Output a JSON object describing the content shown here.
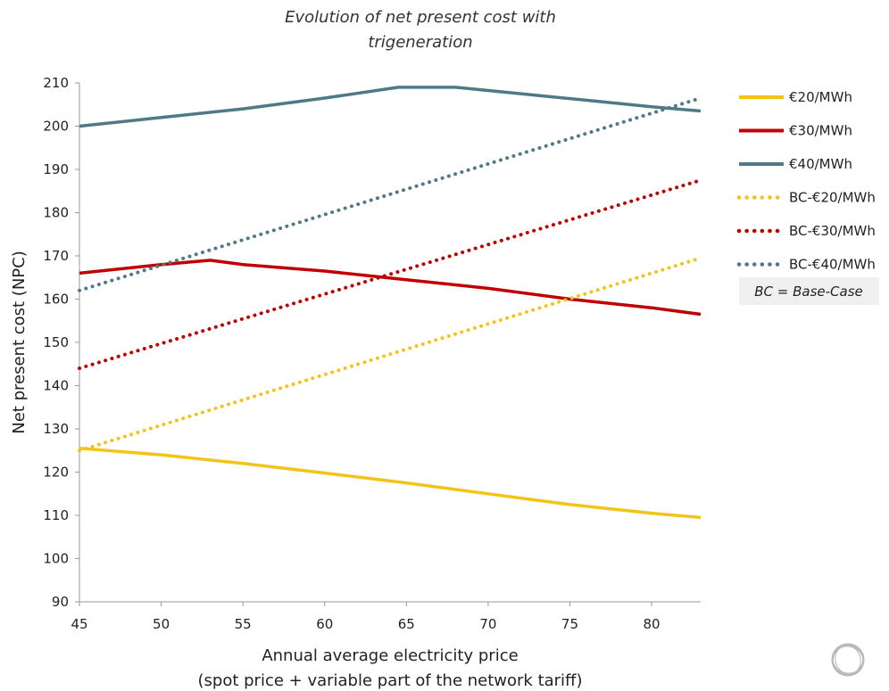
{
  "chart_data": {
    "type": "line",
    "title": [
      "Evolution of net present cost with",
      "trigeneration"
    ],
    "xlabel": [
      "Annual average electricity price",
      "(spot price + variable part of the network tariff)"
    ],
    "ylabel": "Net present cost (NPC)",
    "xlim": [
      45,
      83
    ],
    "ylim": [
      90,
      210
    ],
    "xticks": [
      45,
      50,
      55,
      60,
      65,
      70,
      75,
      80
    ],
    "yticks": [
      90,
      100,
      110,
      120,
      130,
      140,
      150,
      160,
      170,
      180,
      190,
      200,
      210
    ],
    "grid": false,
    "legend_position": "right",
    "series": [
      {
        "name": "€20/MWh",
        "color": "#F2C418",
        "style": "solid",
        "x": [
          45,
          50,
          55,
          60,
          65,
          70,
          75,
          80,
          83
        ],
        "y": [
          125.5,
          124,
          122,
          119.8,
          117.5,
          115,
          112.5,
          110.5,
          109.5
        ]
      },
      {
        "name": "€30/MWh",
        "color": "#C00000",
        "style": "solid",
        "x": [
          45,
          50,
          53,
          55,
          60,
          65,
          70,
          75,
          80,
          83
        ],
        "y": [
          166,
          168,
          169,
          168,
          166.5,
          164.5,
          162.5,
          160,
          158,
          156.5
        ]
      },
      {
        "name": "€40/MWh",
        "color": "#4E7A86",
        "style": "solid",
        "x": [
          45,
          50,
          55,
          60,
          64.5,
          68,
          72,
          76,
          80,
          83
        ],
        "y": [
          200,
          202,
          204,
          206.5,
          209,
          209,
          207.5,
          206,
          204.5,
          203.5
        ]
      },
      {
        "name": "BC-€20/MWh",
        "color": "#F2C418",
        "style": "dotted",
        "x": [
          45,
          83
        ],
        "y": [
          125,
          169.5
        ]
      },
      {
        "name": "BC-€30/MWh",
        "color": "#C00000",
        "style": "dotted",
        "x": [
          45,
          83
        ],
        "y": [
          144,
          187.5
        ]
      },
      {
        "name": "BC-€40/MWh",
        "color": "#4E7A86",
        "style": "dotted",
        "x": [
          45,
          83
        ],
        "y": [
          162,
          206.5
        ]
      }
    ],
    "annotation": "BC = Base-Case"
  },
  "colors": {
    "axis": "#9a9a9a",
    "note_box": "#f0f0f0"
  },
  "icons": {
    "corner_logo": "circular-ring-logo-icon"
  }
}
